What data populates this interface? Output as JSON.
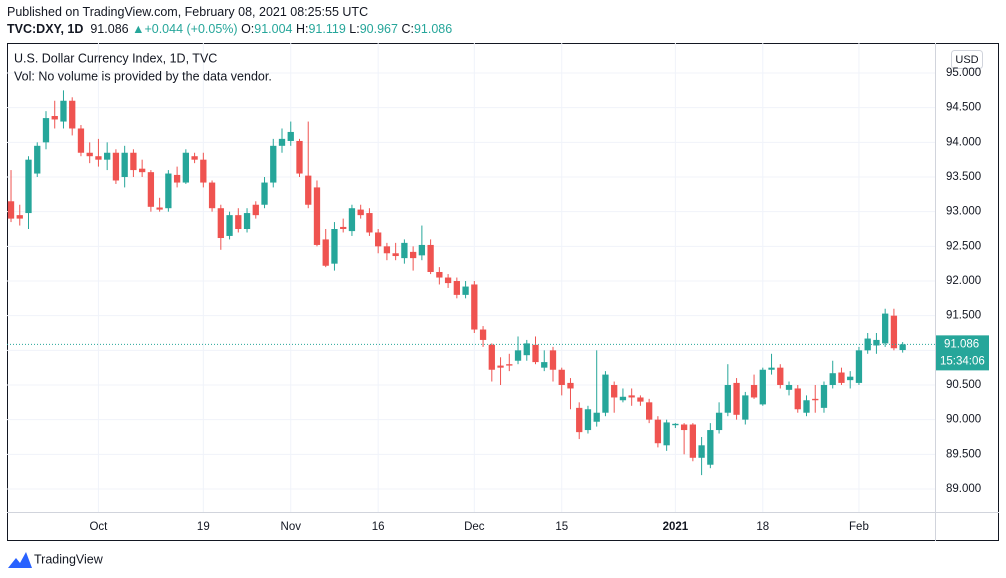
{
  "header": {
    "published": "Published on TradingView.com, February 08, 2021 08:25:55 UTC",
    "symbol": "TVC:DXY, 1D",
    "arrow": "▲",
    "change": "+0.044 (+0.05%)",
    "o": "O:",
    "h": "H:",
    "l": "L:",
    "c": "C:",
    "currency": "USD",
    "countdown": "15:34:06",
    "brand": "TradingView"
  },
  "chart_data": {
    "type": "candlestick",
    "title": "U.S. Dollar Currency Index, 1D, TVC",
    "subtitle": "Vol: No volume is provided by the data vendor.",
    "up_color": "#26a69a",
    "down_color": "#ef5350",
    "grid": true,
    "open": [
      93.15,
      92.95,
      92.98,
      93.55,
      94.0,
      94.38,
      94.3,
      94.6,
      94.2,
      93.85,
      93.8,
      93.75,
      93.85,
      93.5,
      93.85,
      93.62,
      93.57,
      93.06,
      93.05,
      93.53,
      93.42,
      93.8,
      93.75,
      93.42,
      93.05,
      92.65,
      92.95,
      92.75,
      93.1,
      93.1,
      93.42,
      93.95,
      94.02,
      94.02,
      93.52,
      93.35,
      92.6,
      92.25,
      92.78,
      92.72,
      93.03,
      92.98,
      92.7,
      92.5,
      92.4,
      92.33,
      92.42,
      92.37,
      92.52,
      92.13,
      92.05,
      92.0,
      91.8,
      91.95,
      91.3,
      91.08,
      90.78,
      90.8,
      90.85,
      90.93,
      91.08,
      90.75,
      91.0,
      90.72,
      90.53,
      90.17,
      89.85,
      89.97,
      90.1,
      90.5,
      90.28,
      90.35,
      90.32,
      90.25,
      90.0,
      89.63,
      89.92,
      89.93,
      89.93,
      89.45,
      89.35,
      89.85,
      90.1,
      90.53,
      90.0,
      90.5,
      90.22,
      90.72,
      90.75,
      90.43,
      90.45,
      90.1,
      90.3,
      90.17,
      90.5,
      90.68,
      90.57,
      90.53,
      91.0,
      91.07,
      91.1,
      91.5,
      91.004
    ],
    "high": [
      93.6,
      93.1,
      93.8,
      94.0,
      94.45,
      94.6,
      94.75,
      94.65,
      94.25,
      94.0,
      94.05,
      94.0,
      93.9,
      93.95,
      93.9,
      93.75,
      93.6,
      93.2,
      93.6,
      93.65,
      93.9,
      93.85,
      93.85,
      93.45,
      93.1,
      93.0,
      93.05,
      93.05,
      93.15,
      93.5,
      94.05,
      94.2,
      94.3,
      94.05,
      94.3,
      93.45,
      92.75,
      92.85,
      92.9,
      93.1,
      93.1,
      93.05,
      92.75,
      92.55,
      92.55,
      92.6,
      92.5,
      92.8,
      92.6,
      92.2,
      92.1,
      92.05,
      92.0,
      92.0,
      91.35,
      91.1,
      90.9,
      90.95,
      91.2,
      91.15,
      91.2,
      91.0,
      91.05,
      90.75,
      90.6,
      90.25,
      90.2,
      91.0,
      90.7,
      90.55,
      90.45,
      90.45,
      90.35,
      90.3,
      90.05,
      90.0,
      89.95,
      89.95,
      89.95,
      89.75,
      89.95,
      90.25,
      90.8,
      90.6,
      90.4,
      90.65,
      90.75,
      90.95,
      90.8,
      90.55,
      90.5,
      90.35,
      90.5,
      90.55,
      90.85,
      90.75,
      90.7,
      91.05,
      91.25,
      91.25,
      91.6,
      91.6,
      91.119
    ],
    "low": [
      92.85,
      92.8,
      92.75,
      93.5,
      93.9,
      94.2,
      94.2,
      94.1,
      93.8,
      93.7,
      93.65,
      93.6,
      93.4,
      93.35,
      93.5,
      93.5,
      93.0,
      93.0,
      93.0,
      93.35,
      93.4,
      93.7,
      93.35,
      93.0,
      92.45,
      92.6,
      92.7,
      92.7,
      92.9,
      93.05,
      93.35,
      93.85,
      93.95,
      93.5,
      93.05,
      92.5,
      92.2,
      92.15,
      92.7,
      92.65,
      92.9,
      92.65,
      92.4,
      92.3,
      92.3,
      92.25,
      92.15,
      92.3,
      92.1,
      91.95,
      91.9,
      91.75,
      91.75,
      91.25,
      91.05,
      90.55,
      90.5,
      90.7,
      90.8,
      90.85,
      90.8,
      90.7,
      90.55,
      90.35,
      90.15,
      89.72,
      89.8,
      89.9,
      90.05,
      90.1,
      90.25,
      90.2,
      90.2,
      89.95,
      89.6,
      89.55,
      89.88,
      89.5,
      89.4,
      89.2,
      89.3,
      89.8,
      90.05,
      90.0,
      89.93,
      90.3,
      90.2,
      90.65,
      90.45,
      90.35,
      90.1,
      90.05,
      90.1,
      90.1,
      90.45,
      90.5,
      90.45,
      90.5,
      90.95,
      90.95,
      91.05,
      91.0,
      90.967
    ],
    "close": [
      92.9,
      92.9,
      93.75,
      93.95,
      94.35,
      94.33,
      94.6,
      94.2,
      93.85,
      93.8,
      93.75,
      93.85,
      93.45,
      93.85,
      93.6,
      93.57,
      93.07,
      93.03,
      93.55,
      93.42,
      93.85,
      93.75,
      93.42,
      93.05,
      92.62,
      92.95,
      92.75,
      92.98,
      92.95,
      93.42,
      93.95,
      94.05,
      94.15,
      93.55,
      93.1,
      92.52,
      92.22,
      92.75,
      92.75,
      93.05,
      92.95,
      92.7,
      92.5,
      92.4,
      92.36,
      92.55,
      92.33,
      92.52,
      92.13,
      92.05,
      91.97,
      91.8,
      91.92,
      91.3,
      91.15,
      90.72,
      90.75,
      90.78,
      91.0,
      91.1,
      90.83,
      90.83,
      90.72,
      90.5,
      90.45,
      89.82,
      90.15,
      90.1,
      90.65,
      90.32,
      90.33,
      90.32,
      90.26,
      90.0,
      89.66,
      89.96,
      89.94,
      89.85,
      89.45,
      89.63,
      89.85,
      90.1,
      90.5,
      90.07,
      90.35,
      90.32,
      90.72,
      90.75,
      90.5,
      90.5,
      90.15,
      90.28,
      90.28,
      90.5,
      90.67,
      90.53,
      90.62,
      91.0,
      91.17,
      91.15,
      91.53,
      91.03,
      91.086
    ],
    "xlim": [
      -0.46,
      105.7
    ],
    "ylim": [
      88.668,
      95.433
    ],
    "xticks": [
      {
        "value": 10,
        "label": "Oct"
      },
      {
        "value": 22,
        "label": "19"
      },
      {
        "value": 32,
        "label": "Nov"
      },
      {
        "value": 42,
        "label": "16"
      },
      {
        "value": 53,
        "label": "Dec"
      },
      {
        "value": 63,
        "label": "15"
      },
      {
        "value": 76,
        "label": "2021"
      },
      {
        "value": 86,
        "label": "18"
      },
      {
        "value": 97,
        "label": "Feb"
      }
    ],
    "yticks": [
      {
        "value": 89,
        "label": "89.000"
      },
      {
        "value": 89.5,
        "label": "89.500"
      },
      {
        "value": 90,
        "label": "90.000"
      },
      {
        "value": 90.5,
        "label": "90.500"
      },
      {
        "value": 91,
        "label": "91.000"
      },
      {
        "value": 91.5,
        "label": "91.500"
      },
      {
        "value": 92,
        "label": "92.000"
      },
      {
        "value": 92.5,
        "label": "92.500"
      },
      {
        "value": 93,
        "label": "93.000"
      },
      {
        "value": 93.5,
        "label": "93.500"
      },
      {
        "value": 94,
        "label": "94.000"
      },
      {
        "value": 94.5,
        "label": "94.500"
      },
      {
        "value": 95,
        "label": "95.000"
      }
    ]
  }
}
